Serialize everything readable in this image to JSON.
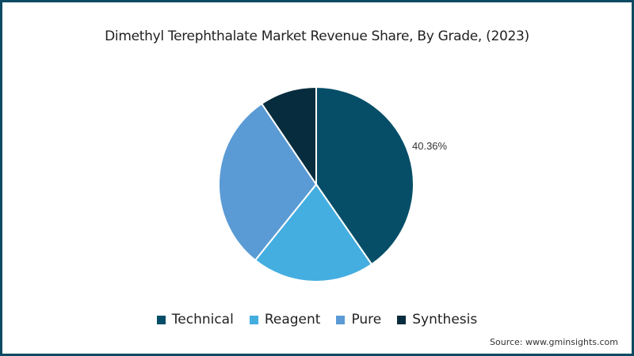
{
  "chart_data": {
    "type": "pie",
    "title": "Dimethyl Terephthalate Market Revenue Share, By Grade, (2023)",
    "categories": [
      "Technical",
      "Reagent",
      "Pure",
      "Synthesis"
    ],
    "values": [
      40.36,
      20.4,
      29.8,
      9.44
    ],
    "colors": [
      "#064e68",
      "#44aee0",
      "#5b9bd5",
      "#072c3d"
    ],
    "annotations": [
      {
        "category": "Technical",
        "label": "40.36%"
      }
    ],
    "legend_position": "bottom",
    "source": "Source: www.gminsights.com"
  },
  "labels": {
    "title": "Dimethyl Terephthalate Market Revenue Share, By Grade, (2023)",
    "technical_pct": "40.36%",
    "legend": [
      "Technical",
      "Reagent",
      "Pure",
      "Synthesis"
    ],
    "source": "Source: www.gminsights.com"
  }
}
